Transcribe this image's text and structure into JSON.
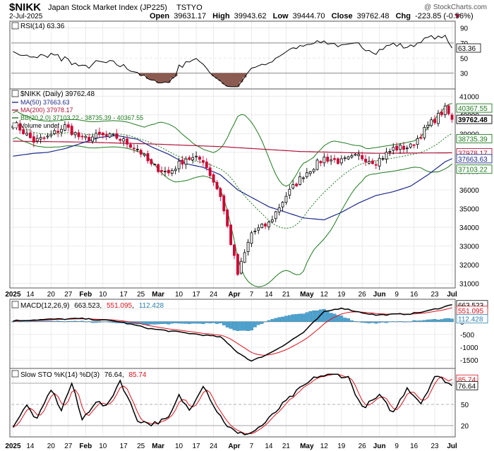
{
  "header": {
    "symbol": "$NIKK",
    "name": "Japan Stock Market Index (JP225)",
    "exchange": "TSTYO",
    "date": "2-Jul-2025",
    "open_label": "Open",
    "open": "39631.17",
    "high_label": "High",
    "high": "39943.62",
    "low_label": "Low",
    "low": "39444.70",
    "close_label": "Close",
    "close": "39762.48",
    "chg_label": "Chg",
    "chg": "-223.85 (-0.56%)",
    "watermark": "@ StockCharts.com"
  },
  "colors": {
    "up": "#000000",
    "down": "#cc0033",
    "ma50": "#1f2b8a",
    "ma200": "#b0163a",
    "bb": "#1f7a1f",
    "macd_hist": "#4ba3d1",
    "signal": "#d9141e",
    "rsi_fill": "#8b5a50"
  },
  "x_axis": {
    "ticks": [
      "2025",
      "14",
      "20",
      "27",
      "Feb",
      "10",
      "17",
      "25",
      "Mar",
      "10",
      "17",
      "24",
      "Apr",
      "7",
      "14",
      "21",
      "May",
      "12",
      "19",
      "26",
      "Jun",
      "9",
      "16",
      "23",
      "Jul"
    ],
    "bold": [
      "2025",
      "Feb",
      "Mar",
      "Apr",
      "May",
      "Jun",
      "Jul"
    ]
  },
  "rsi": {
    "legend": "RSI(14) 63.36",
    "yticks": [
      30,
      50,
      70,
      90
    ],
    "last_label": "63.36",
    "ylim": [
      10,
      98
    ]
  },
  "price": {
    "legend": {
      "title": "$NIKK (Daily) 39762.48",
      "ma50": "MA(50) 37663.63",
      "ma200": "MA(200) 37978.17",
      "bb": "BB(20,2.0) 37103.22 - 38735.39 - 40367.55",
      "volume": "Volume undef"
    },
    "yticks": [
      31000,
      32000,
      33000,
      34000,
      35000,
      36000,
      37000,
      38000,
      39000,
      40000,
      41000
    ],
    "ylim": [
      30800,
      41350
    ],
    "labels": [
      {
        "text": "40367.55",
        "value": 40367.55,
        "color": "#1f7a1f"
      },
      {
        "text": "39762.48",
        "value": 39762.48,
        "color": "#000000",
        "bold": true
      },
      {
        "text": "38735.39",
        "value": 38735.39,
        "color": "#1f7a1f"
      },
      {
        "text": "37978.17",
        "value": 37978.17,
        "color": "#b0163a"
      },
      {
        "text": "37663.63",
        "value": 37663.63,
        "color": "#1f2b8a"
      },
      {
        "text": "37103.22",
        "value": 37103.22,
        "color": "#1f7a1f"
      }
    ]
  },
  "macd": {
    "legend": "MACD(12,26,9)",
    "macd_value": "663.523",
    "signal_value": "551.095",
    "hist_value": "112.428",
    "yticks": [
      -1500,
      -1000,
      -500,
      0,
      500
    ],
    "ylim": [
      -1800,
      850
    ]
  },
  "sto": {
    "legend": "Slow STO %K(14) %D(3)",
    "k_value": "76.64",
    "d_value": "85.74",
    "yticks": [
      20,
      50,
      80
    ],
    "ylim": [
      5,
      100
    ]
  },
  "chart_data": {
    "type": "candlestick",
    "title": "$NIKK Japan Stock Market Index (JP225) TSTYO",
    "x_start": "2025-01-06",
    "x_end": "2025-07-02",
    "keys": [
      [
        "2025-01-06",
        39600,
        37800
      ],
      [
        "2025-01-14",
        38600,
        37950
      ],
      [
        "2025-01-20",
        38800,
        38000
      ],
      [
        "2025-01-27",
        39400,
        38200
      ],
      [
        "2025-02-03",
        38700,
        38500
      ],
      [
        "2025-02-10",
        38900,
        38800
      ],
      [
        "2025-02-17",
        38800,
        38900
      ],
      [
        "2025-02-25",
        38200,
        38700
      ],
      [
        "2025-03-03",
        37300,
        38300
      ],
      [
        "2025-03-10",
        36900,
        37900
      ],
      [
        "2025-03-17",
        37700,
        37400
      ],
      [
        "2025-03-24",
        37600,
        37200
      ],
      [
        "2025-03-31",
        35700,
        36800
      ],
      [
        "2025-04-07",
        31500,
        36000
      ],
      [
        "2025-04-11",
        33700,
        35600
      ],
      [
        "2025-04-18",
        34200,
        35100
      ],
      [
        "2025-04-25",
        35700,
        34800
      ],
      [
        "2025-05-02",
        36800,
        34500
      ],
      [
        "2025-05-12",
        37700,
        34400
      ],
      [
        "2025-05-19",
        37500,
        34800
      ],
      [
        "2025-05-26",
        37800,
        35300
      ],
      [
        "2025-06-02",
        37500,
        35700
      ],
      [
        "2025-06-09",
        38200,
        35900
      ],
      [
        "2025-06-16",
        38300,
        36200
      ],
      [
        "2025-06-23",
        39400,
        36800
      ],
      [
        "2025-06-30",
        40300,
        37500
      ],
      [
        "2025-07-02",
        39762.48,
        37663.63
      ]
    ],
    "ma200_keys": [
      [
        "2025-01-06",
        38600
      ],
      [
        "2025-02-03",
        38550
      ],
      [
        "2025-03-03",
        38450
      ],
      [
        "2025-04-01",
        38300
      ],
      [
        "2025-05-01",
        38050
      ],
      [
        "2025-06-02",
        37950
      ],
      [
        "2025-07-02",
        37978.17
      ]
    ],
    "macd_keys": [
      [
        "2025-01-06",
        40
      ],
      [
        "2025-01-20",
        90
      ],
      [
        "2025-02-03",
        120
      ],
      [
        "2025-02-17",
        20
      ],
      [
        "2025-03-03",
        -280
      ],
      [
        "2025-03-17",
        -440
      ],
      [
        "2025-03-31",
        -600
      ],
      [
        "2025-04-07",
        -1200
      ],
      [
        "2025-04-11",
        -1540
      ],
      [
        "2025-04-18",
        -1250
      ],
      [
        "2025-04-25",
        -860
      ],
      [
        "2025-05-02",
        -420
      ],
      [
        "2025-05-12",
        380
      ],
      [
        "2025-05-19",
        540
      ],
      [
        "2025-05-26",
        380
      ],
      [
        "2025-06-02",
        260
      ],
      [
        "2025-06-16",
        310
      ],
      [
        "2025-06-23",
        420
      ],
      [
        "2025-07-02",
        663.523
      ]
    ],
    "sto_keys": [
      [
        "2025-01-06",
        20
      ],
      [
        "2025-01-10",
        48
      ],
      [
        "2025-01-15",
        28
      ],
      [
        "2025-01-21",
        72
      ],
      [
        "2025-01-24",
        42
      ],
      [
        "2025-01-29",
        80
      ],
      [
        "2025-02-03",
        28
      ],
      [
        "2025-02-07",
        55
      ],
      [
        "2025-02-12",
        46
      ],
      [
        "2025-02-18",
        84
      ],
      [
        "2025-02-25",
        28
      ],
      [
        "2025-03-03",
        22
      ],
      [
        "2025-03-10",
        30
      ],
      [
        "2025-03-13",
        62
      ],
      [
        "2025-03-18",
        42
      ],
      [
        "2025-03-24",
        78
      ],
      [
        "2025-03-28",
        40
      ],
      [
        "2025-04-02",
        20
      ],
      [
        "2025-04-07",
        8
      ],
      [
        "2025-04-11",
        10
      ],
      [
        "2025-04-17",
        24
      ],
      [
        "2025-04-24",
        50
      ],
      [
        "2025-05-01",
        72
      ],
      [
        "2025-05-08",
        90
      ],
      [
        "2025-05-16",
        92
      ],
      [
        "2025-05-21",
        88
      ],
      [
        "2025-05-27",
        45
      ],
      [
        "2025-06-03",
        62
      ],
      [
        "2025-06-07",
        38
      ],
      [
        "2025-06-13",
        74
      ],
      [
        "2025-06-19",
        52
      ],
      [
        "2025-06-25",
        90
      ],
      [
        "2025-06-30",
        84
      ],
      [
        "2025-07-02",
        76.64
      ]
    ]
  }
}
